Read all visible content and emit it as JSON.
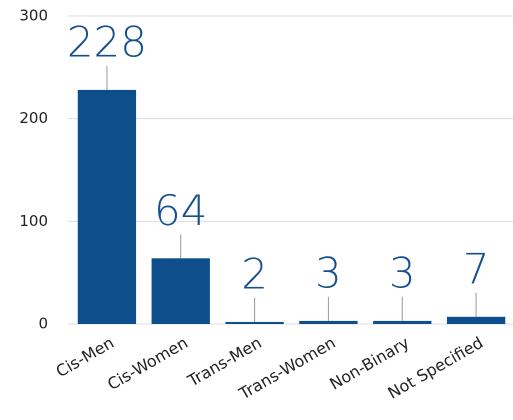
{
  "chart_data": {
    "type": "bar",
    "categories": [
      "Cis-Men",
      "Cis-Women",
      "Trans-Men",
      "Trans-Women",
      "Non-Binary",
      "Not Specified"
    ],
    "values": [
      228,
      64,
      2,
      3,
      3,
      7
    ],
    "color": "#0e4f8b",
    "ylim": [
      0,
      300
    ],
    "yticks": [
      0,
      100,
      200,
      300
    ],
    "grid": true
  }
}
